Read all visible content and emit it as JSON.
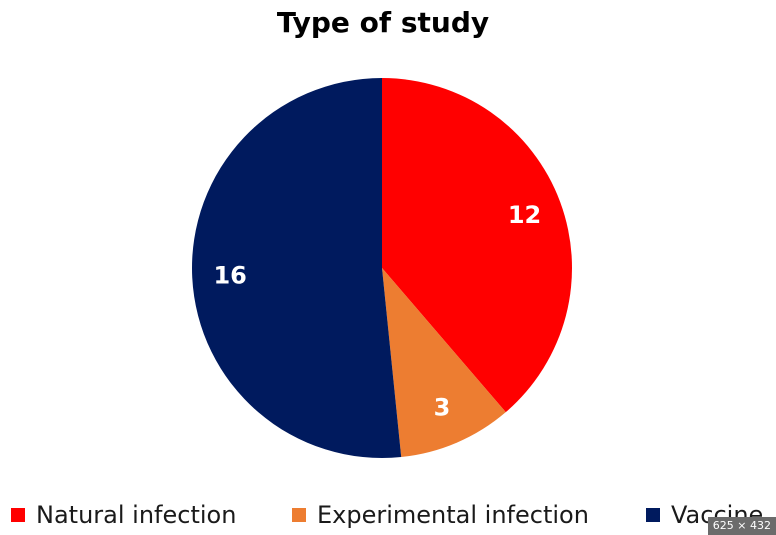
{
  "chart_data": {
    "type": "pie",
    "title": "Type of study",
    "categories": [
      "Natural infection",
      "Experimental infection",
      "Vaccine"
    ],
    "values": [
      12,
      3,
      16
    ],
    "colors": [
      "#ff0000",
      "#ed7d31",
      "#001a5e"
    ],
    "data_labels": [
      "12",
      "3",
      "16"
    ],
    "legend_position": "bottom",
    "start_angle": "12 o'clock",
    "direction": "clockwise"
  },
  "badge": {
    "text": "625 × 432"
  }
}
